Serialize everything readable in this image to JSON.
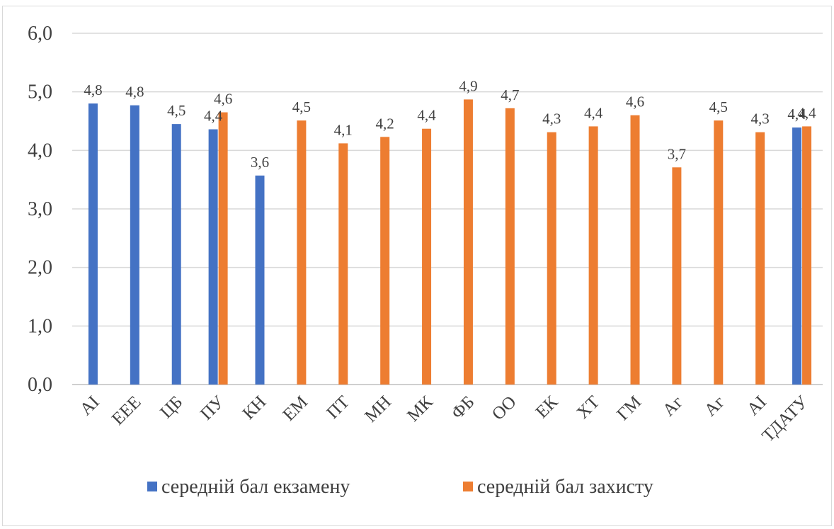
{
  "chart_data": {
    "type": "bar",
    "title": "",
    "xlabel": "",
    "ylabel": "",
    "ylim": [
      0,
      6
    ],
    "yticks": [
      "0,0",
      "1,0",
      "2,0",
      "3,0",
      "4,0",
      "5,0",
      "6,0"
    ],
    "grid": true,
    "legend_position": "bottom",
    "categories": [
      "АІ",
      "ЕЕЕ",
      "ЦБ",
      "ПУ",
      "КН",
      "ЕМ",
      "ПТ",
      "МН",
      "МК",
      "ФБ",
      "ОО",
      "ЕК",
      "ХТ",
      "ГМ",
      "Аг",
      "Аг",
      "АІ",
      "ТДАТУ"
    ],
    "series": [
      {
        "name": "середній бал екзамену",
        "color": "#4472c4",
        "values": [
          4.8,
          4.77,
          4.45,
          4.36,
          3.57,
          null,
          null,
          null,
          null,
          null,
          null,
          null,
          null,
          null,
          null,
          null,
          null,
          4.39
        ],
        "labels": [
          "4,8",
          "4,8",
          "4,5",
          "4,4",
          "3,6",
          null,
          null,
          null,
          null,
          null,
          null,
          null,
          null,
          null,
          null,
          null,
          null,
          "4,4"
        ]
      },
      {
        "name": "середній бал захисту",
        "color": "#ed7d31",
        "values": [
          null,
          null,
          null,
          4.65,
          null,
          4.51,
          4.12,
          4.23,
          4.37,
          4.87,
          4.72,
          4.31,
          4.41,
          4.6,
          3.71,
          4.51,
          4.31,
          4.41
        ],
        "labels": [
          null,
          null,
          null,
          "4,6",
          null,
          "4,5",
          "4,1",
          "4,2",
          "4,4",
          "4,9",
          "4,7",
          "4,3",
          "4,4",
          "4,6",
          "3,7",
          "4,5",
          "4,3",
          "4,4"
        ]
      }
    ]
  }
}
